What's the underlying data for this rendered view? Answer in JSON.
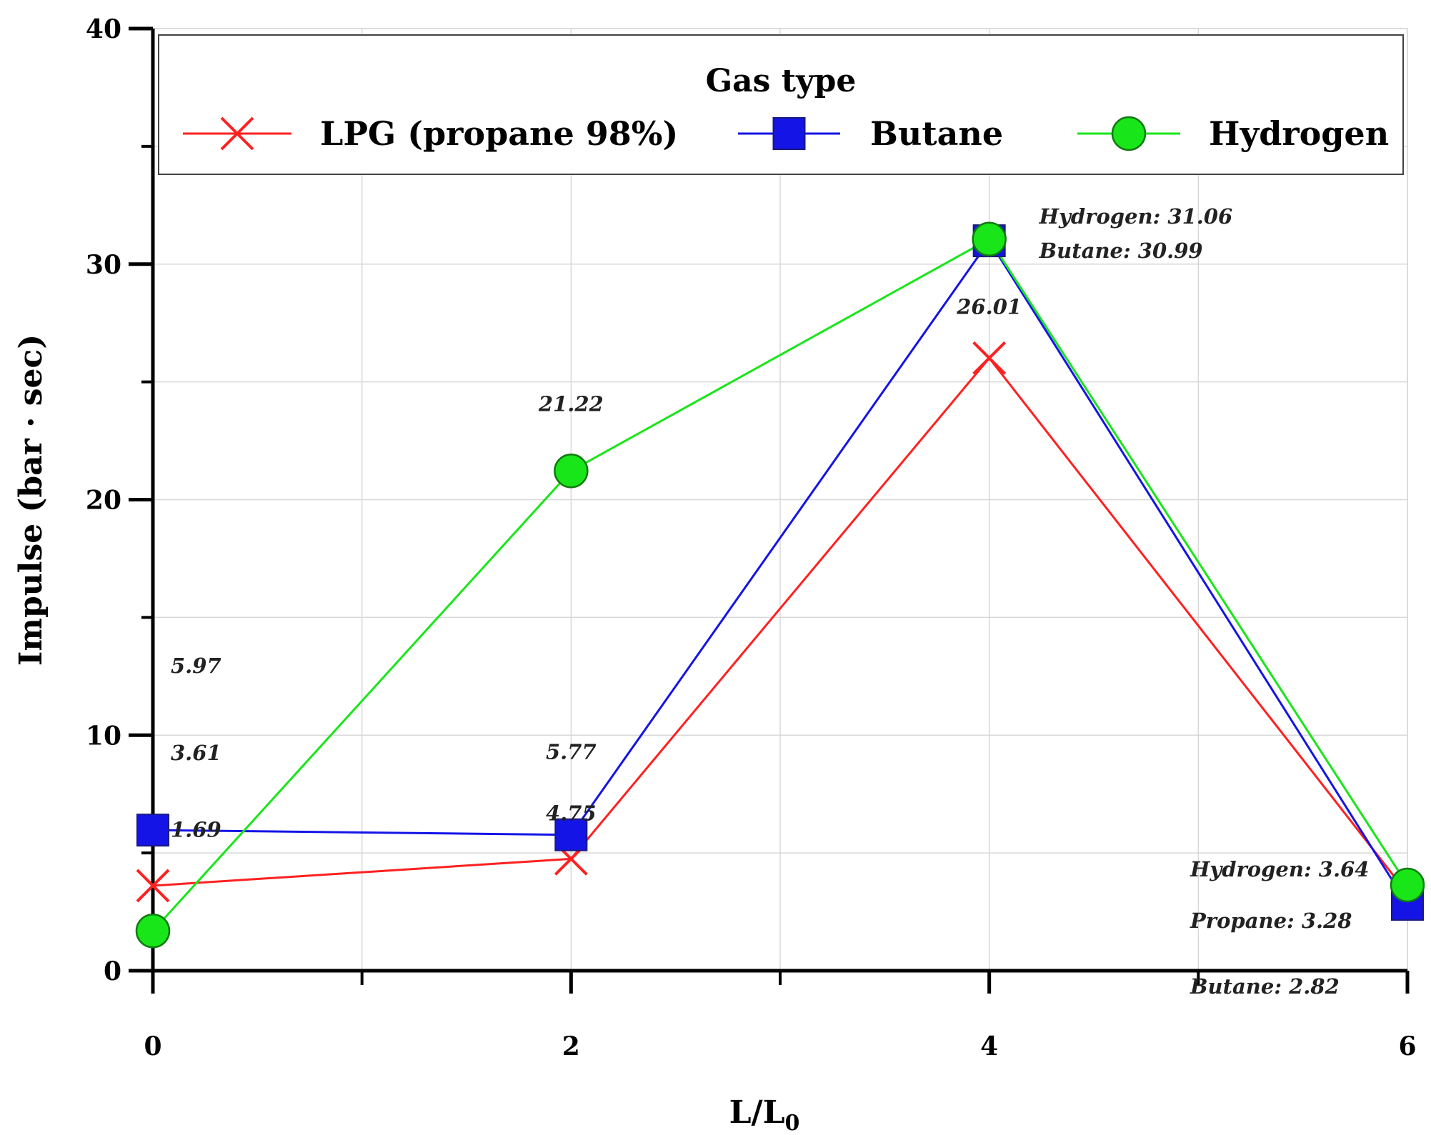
{
  "chart_data": {
    "type": "line",
    "x": [
      0,
      2,
      4,
      6
    ],
    "xlabel": "L/L",
    "xlabel_subscript": "0",
    "ylabel": "Impulse (bar · sec)",
    "xlim": [
      0,
      6
    ],
    "ylim": [
      0,
      40
    ],
    "xticks": [
      0,
      2,
      4,
      6
    ],
    "yticks": [
      0,
      10,
      20,
      30,
      40
    ],
    "x_minor_ticks": [
      1,
      3,
      5
    ],
    "y_minor_ticks": [
      5,
      15,
      25,
      35
    ],
    "grid": true,
    "legend": {
      "title": "Gas type",
      "position": "top"
    },
    "series": [
      {
        "name": "LPG (propane 98%)",
        "marker": "x",
        "color": "#ff2020",
        "values": [
          3.61,
          4.75,
          26.01,
          3.28
        ]
      },
      {
        "name": "Butane",
        "marker": "square",
        "color": "#1414e6",
        "values": [
          5.97,
          5.77,
          30.99,
          2.82
        ]
      },
      {
        "name": "Hydrogen",
        "marker": "circle",
        "color": "#19e619",
        "values": [
          1.69,
          21.22,
          31.06,
          3.64
        ]
      }
    ],
    "annotations": [
      {
        "text": "5.97",
        "x": 0,
        "y": 5.97
      },
      {
        "text": "3.61",
        "x": 0,
        "y": 3.61
      },
      {
        "text": "1.69",
        "x": 0,
        "y": 1.69
      },
      {
        "text": "5.77",
        "x": 2,
        "y": 5.77
      },
      {
        "text": "4.75",
        "x": 2,
        "y": 4.75
      },
      {
        "text": "21.22",
        "x": 2,
        "y": 21.22
      },
      {
        "text": "26.01",
        "x": 4,
        "y": 26.01
      },
      {
        "text": "Hydrogen: 31.06",
        "x": 4,
        "y": 31.06
      },
      {
        "text": "Butane: 30.99",
        "x": 4,
        "y": 30.99
      },
      {
        "text": "Hydrogen: 3.64",
        "x": 6,
        "y": 3.64
      },
      {
        "text": "Propane: 3.28",
        "x": 6,
        "y": 3.28
      },
      {
        "text": "Butane: 2.82",
        "x": 6,
        "y": 2.82
      }
    ]
  }
}
